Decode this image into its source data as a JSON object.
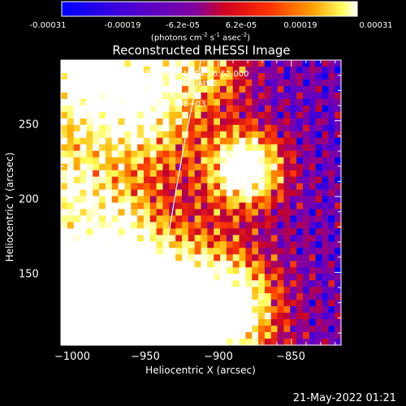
{
  "colorbar": {
    "ticks": [
      "-0.00031",
      "-0.00019",
      "-6.2e-05",
      "6.2e-05",
      "0.00019",
      "0.00031"
    ],
    "units_main": "(photons cm",
    "units_exp1": "-2",
    "units_mid": " s",
    "units_exp2": "-1",
    "units_mid2": " asec",
    "units_exp3": "-2",
    "units_end": ")"
  },
  "header": {
    "title": "Reconstructed RHESSI Image"
  },
  "annotations": {
    "line1": "8-May-2015 04:13:36.000 to 04:16:52.000",
    "line2": "Detectors: 3F 5F 6F 7F 8F 9F, Att 0",
    "line3": "Energy Range: 12.0 - 25.0 keV",
    "line4": "Clean     Total counts: 3.58E+03",
    "peak": "Position of Peak = [-986,118]"
  },
  "footer": {
    "date": "21-May-2022 01:21"
  },
  "chart_data": {
    "type": "heatmap",
    "title": "Reconstructed RHESSI Image",
    "xlabel": "Heliocentric X (arcsec)",
    "ylabel": "Heliocentric Y (arcsec)",
    "xlim": [
      -1008,
      -816
    ],
    "ylim": [
      102,
      290
    ],
    "x_ticks": [
      -1000,
      -950,
      -900,
      -850
    ],
    "x_tick_labels": [
      "−1000",
      "−950",
      "−900",
      "−850"
    ],
    "y_ticks": [
      150,
      200,
      250
    ],
    "y_tick_labels": [
      "150",
      "200",
      "250"
    ],
    "colorbar_range": [
      -0.00031,
      0.00031
    ],
    "colormap": [
      "#0000ff",
      "#6a00c0",
      "#9000a0",
      "#ff0000",
      "#ff8000",
      "#ffff00",
      "#ffffff"
    ],
    "limb_curve_x": [
      -947,
      -941,
      -935,
      -929,
      -923,
      -917,
      -912
    ],
    "limb_curve_y": [
      102,
      135,
      170,
      205,
      237,
      265,
      290
    ]
  }
}
